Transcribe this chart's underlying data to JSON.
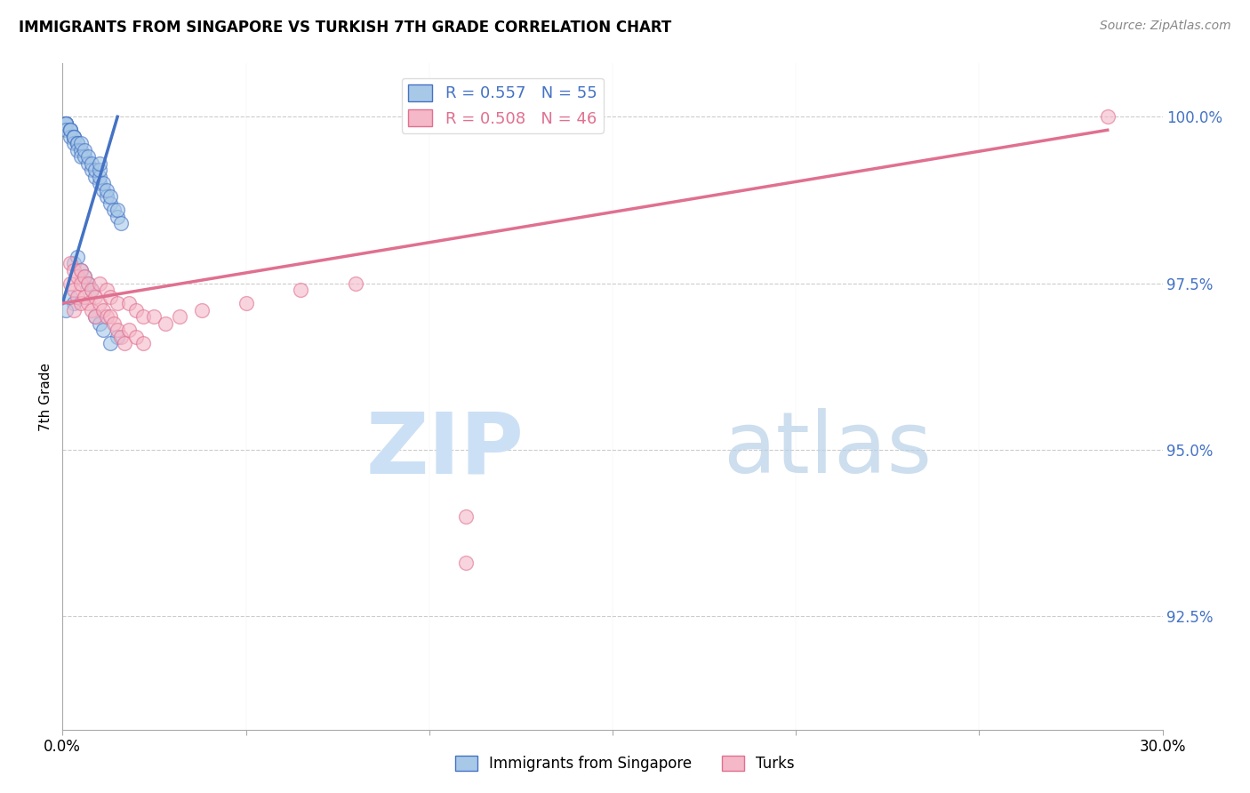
{
  "title": "IMMIGRANTS FROM SINGAPORE VS TURKISH 7TH GRADE CORRELATION CHART",
  "source": "Source: ZipAtlas.com",
  "ylabel": "7th Grade",
  "ytick_labels": [
    "92.5%",
    "95.0%",
    "97.5%",
    "100.0%"
  ],
  "ytick_values": [
    0.925,
    0.95,
    0.975,
    1.0
  ],
  "xmin": 0.0,
  "xmax": 0.3,
  "ymin": 0.908,
  "ymax": 1.008,
  "legend_blue_text": "R = 0.557   N = 55",
  "legend_pink_text": "R = 0.508   N = 46",
  "color_blue": "#a8c8e8",
  "color_pink": "#f4b8c8",
  "line_blue": "#4472c4",
  "line_pink": "#e07090",
  "blue_scatter_x": [
    0.001,
    0.001,
    0.001,
    0.001,
    0.001,
    0.002,
    0.002,
    0.002,
    0.002,
    0.003,
    0.003,
    0.003,
    0.003,
    0.004,
    0.004,
    0.004,
    0.005,
    0.005,
    0.005,
    0.006,
    0.006,
    0.007,
    0.007,
    0.008,
    0.008,
    0.009,
    0.009,
    0.01,
    0.01,
    0.01,
    0.01,
    0.011,
    0.011,
    0.012,
    0.012,
    0.013,
    0.013,
    0.014,
    0.015,
    0.015,
    0.016,
    0.003,
    0.004,
    0.005,
    0.006,
    0.007,
    0.008,
    0.002,
    0.003,
    0.001,
    0.009,
    0.01,
    0.011,
    0.015,
    0.013
  ],
  "blue_scatter_y": [
    0.999,
    0.999,
    0.999,
    0.999,
    0.998,
    0.998,
    0.998,
    0.997,
    0.998,
    0.997,
    0.997,
    0.996,
    0.997,
    0.996,
    0.996,
    0.995,
    0.995,
    0.996,
    0.994,
    0.994,
    0.995,
    0.993,
    0.994,
    0.992,
    0.993,
    0.991,
    0.992,
    0.99,
    0.991,
    0.992,
    0.993,
    0.989,
    0.99,
    0.988,
    0.989,
    0.987,
    0.988,
    0.986,
    0.985,
    0.986,
    0.984,
    0.978,
    0.979,
    0.977,
    0.976,
    0.975,
    0.974,
    0.973,
    0.972,
    0.971,
    0.97,
    0.969,
    0.968,
    0.967,
    0.966
  ],
  "pink_scatter_x": [
    0.002,
    0.002,
    0.003,
    0.003,
    0.003,
    0.004,
    0.004,
    0.005,
    0.005,
    0.005,
    0.006,
    0.006,
    0.007,
    0.007,
    0.008,
    0.008,
    0.009,
    0.009,
    0.01,
    0.01,
    0.011,
    0.012,
    0.012,
    0.013,
    0.013,
    0.014,
    0.015,
    0.015,
    0.016,
    0.017,
    0.018,
    0.018,
    0.02,
    0.02,
    0.022,
    0.022,
    0.025,
    0.028,
    0.032,
    0.038,
    0.05,
    0.065,
    0.08,
    0.11,
    0.11,
    0.285
  ],
  "pink_scatter_y": [
    0.978,
    0.975,
    0.977,
    0.974,
    0.971,
    0.976,
    0.973,
    0.977,
    0.975,
    0.972,
    0.976,
    0.973,
    0.975,
    0.972,
    0.974,
    0.971,
    0.973,
    0.97,
    0.975,
    0.972,
    0.971,
    0.974,
    0.97,
    0.973,
    0.97,
    0.969,
    0.972,
    0.968,
    0.967,
    0.966,
    0.972,
    0.968,
    0.971,
    0.967,
    0.97,
    0.966,
    0.97,
    0.969,
    0.97,
    0.971,
    0.972,
    0.974,
    0.975,
    0.94,
    0.933,
    1.0
  ],
  "blue_line_x": [
    0.0,
    0.015
  ],
  "blue_line_y": [
    0.972,
    1.0
  ],
  "pink_line_x": [
    0.0,
    0.285
  ],
  "pink_line_y": [
    0.972,
    0.998
  ]
}
